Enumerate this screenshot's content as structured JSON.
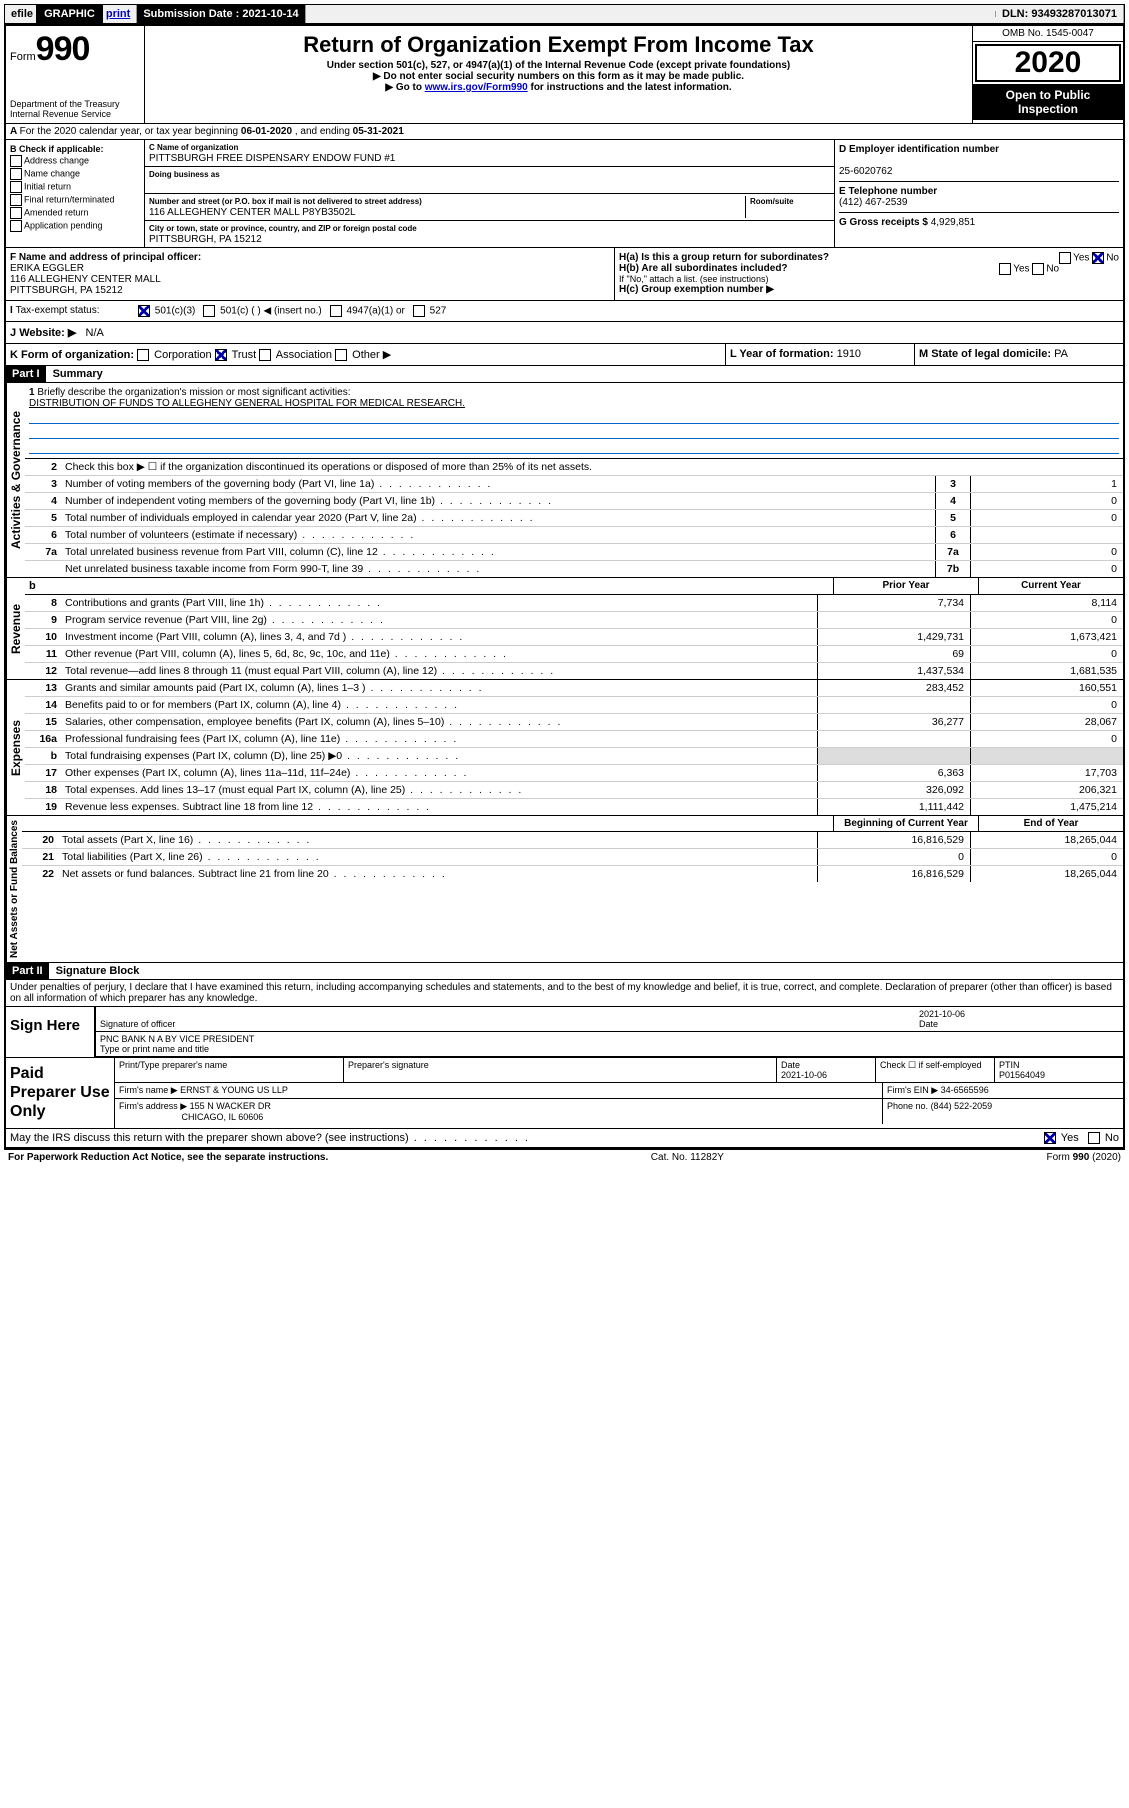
{
  "topbar": {
    "efile": "efile",
    "graphic": "GRAPHIC",
    "print": "print",
    "sub_label": "Submission Date :",
    "sub_date": "2021-10-14",
    "dln_label": "DLN:",
    "dln": "93493287013071"
  },
  "header": {
    "form": "Form",
    "num": "990",
    "dept1": "Department of the Treasury",
    "dept2": "Internal Revenue Service",
    "title": "Return of Organization Exempt From Income Tax",
    "sub1": "Under section 501(c), 527, or 4947(a)(1) of the Internal Revenue Code (except private foundations)",
    "sub2": "▶ Do not enter social security numbers on this form as it may be made public.",
    "sub3_pre": "▶ Go to ",
    "sub3_link": "www.irs.gov/Form990",
    "sub3_post": " for instructions and the latest information.",
    "omb": "OMB No. 1545-0047",
    "year": "2020",
    "inspect": "Open to Public Inspection"
  },
  "A": {
    "text_pre": "For the 2020 calendar year, or tax year beginning ",
    "begin": "06-01-2020",
    "mid": " , and ending ",
    "end": "05-31-2021"
  },
  "B": {
    "title": "B Check if applicable:",
    "items": [
      "Address change",
      "Name change",
      "Initial return",
      "Final return/terminated",
      "Amended return",
      "Application pending"
    ]
  },
  "C": {
    "name_label": "C Name of organization",
    "name": "PITTSBURGH FREE DISPENSARY ENDOW FUND #1",
    "dba_label": "Doing business as",
    "dba": "",
    "addr_label": "Number and street (or P.O. box if mail is not delivered to street address)",
    "room_label": "Room/suite",
    "addr": "116 ALLEGHENY CENTER MALL P8YB3502L",
    "city_label": "City or town, state or province, country, and ZIP or foreign postal code",
    "city": "PITTSBURGH, PA  15212"
  },
  "D": {
    "ein_label": "D Employer identification number",
    "ein": "25-6020762",
    "phone_label": "E Telephone number",
    "phone": "(412) 467-2539",
    "gross_label": "G Gross receipts $",
    "gross": "4,929,851"
  },
  "F": {
    "label": "F  Name and address of principal officer:",
    "name": "ERIKA EGGLER",
    "addr1": "116 ALLEGHENY CENTER MALL",
    "addr2": "PITTSBURGH, PA  15212"
  },
  "H": {
    "a": "H(a)  Is this a group return for subordinates?",
    "a_no_checked": true,
    "b": "H(b)  Are all subordinates included?",
    "b_note": "If \"No,\" attach a list. (see instructions)",
    "c": "H(c)  Group exemption number ▶"
  },
  "I": {
    "label": "Tax-exempt status:",
    "opt1": "501(c)(3)",
    "opt2": "501(c) (   ) ◀ (insert no.)",
    "opt3": "4947(a)(1) or",
    "opt4": "527"
  },
  "J": {
    "label": "Website: ▶",
    "val": "N/A"
  },
  "K": {
    "label": "K Form of organization:",
    "opts": [
      "Corporation",
      "Trust",
      "Association",
      "Other ▶"
    ],
    "trust_checked": true,
    "L_label": "L Year of formation:",
    "L_val": "1910",
    "M_label": "M State of legal domicile:",
    "M_val": "PA"
  },
  "partI": {
    "header": "Part I",
    "title": "Summary",
    "line1_label": "Briefly describe the organization's mission or most significant activities:",
    "line1_text": "DISTRIBUTION OF FUNDS TO ALLEGHENY GENERAL HOSPITAL FOR MEDICAL RESEARCH.",
    "line2": "Check this box ▶ ☐  if the organization discontinued its operations or disposed of more than 25% of its net assets.",
    "vlabel_gov": "Activities & Governance",
    "vlabel_rev": "Revenue",
    "vlabel_exp": "Expenses",
    "vlabel_net": "Net Assets or Fund Balances",
    "gov_lines": [
      {
        "n": "3",
        "d": "Number of voting members of the governing body (Part VI, line 1a)",
        "box": "3",
        "v": "1"
      },
      {
        "n": "4",
        "d": "Number of independent voting members of the governing body (Part VI, line 1b)",
        "box": "4",
        "v": "0"
      },
      {
        "n": "5",
        "d": "Total number of individuals employed in calendar year 2020 (Part V, line 2a)",
        "box": "5",
        "v": "0"
      },
      {
        "n": "6",
        "d": "Total number of volunteers (estimate if necessary)",
        "box": "6",
        "v": ""
      },
      {
        "n": "7a",
        "d": "Total unrelated business revenue from Part VIII, column (C), line 12",
        "box": "7a",
        "v": "0"
      },
      {
        "n": "",
        "d": "Net unrelated business taxable income from Form 990-T, line 39",
        "box": "7b",
        "v": "0"
      }
    ],
    "col_prior": "Prior Year",
    "col_current": "Current Year",
    "col_begin": "Beginning of Current Year",
    "col_end": "End of Year",
    "rev_lines": [
      {
        "n": "8",
        "d": "Contributions and grants (Part VIII, line 1h)",
        "p": "7,734",
        "c": "8,114"
      },
      {
        "n": "9",
        "d": "Program service revenue (Part VIII, line 2g)",
        "p": "",
        "c": "0"
      },
      {
        "n": "10",
        "d": "Investment income (Part VIII, column (A), lines 3, 4, and 7d )",
        "p": "1,429,731",
        "c": "1,673,421"
      },
      {
        "n": "11",
        "d": "Other revenue (Part VIII, column (A), lines 5, 6d, 8c, 9c, 10c, and 11e)",
        "p": "69",
        "c": "0"
      },
      {
        "n": "12",
        "d": "Total revenue—add lines 8 through 11 (must equal Part VIII, column (A), line 12)",
        "p": "1,437,534",
        "c": "1,681,535"
      }
    ],
    "exp_lines": [
      {
        "n": "13",
        "d": "Grants and similar amounts paid (Part IX, column (A), lines 1–3 )",
        "p": "283,452",
        "c": "160,551"
      },
      {
        "n": "14",
        "d": "Benefits paid to or for members (Part IX, column (A), line 4)",
        "p": "",
        "c": "0"
      },
      {
        "n": "15",
        "d": "Salaries, other compensation, employee benefits (Part IX, column (A), lines 5–10)",
        "p": "36,277",
        "c": "28,067"
      },
      {
        "n": "16a",
        "d": "Professional fundraising fees (Part IX, column (A), line 11e)",
        "p": "",
        "c": "0"
      },
      {
        "n": "b",
        "d": "Total fundraising expenses (Part IX, column (D), line 25) ▶0",
        "p": "__SHADE__",
        "c": "__SHADE__"
      },
      {
        "n": "17",
        "d": "Other expenses (Part IX, column (A), lines 11a–11d, 11f–24e)",
        "p": "6,363",
        "c": "17,703"
      },
      {
        "n": "18",
        "d": "Total expenses. Add lines 13–17 (must equal Part IX, column (A), line 25)",
        "p": "326,092",
        "c": "206,321"
      },
      {
        "n": "19",
        "d": "Revenue less expenses. Subtract line 18 from line 12",
        "p": "1,111,442",
        "c": "1,475,214"
      }
    ],
    "net_lines": [
      {
        "n": "20",
        "d": "Total assets (Part X, line 16)",
        "p": "16,816,529",
        "c": "18,265,044"
      },
      {
        "n": "21",
        "d": "Total liabilities (Part X, line 26)",
        "p": "0",
        "c": "0"
      },
      {
        "n": "22",
        "d": "Net assets or fund balances. Subtract line 21 from line 20",
        "p": "16,816,529",
        "c": "18,265,044"
      }
    ]
  },
  "partII": {
    "header": "Part II",
    "title": "Signature Block",
    "perjury": "Under penalties of perjury, I declare that I have examined this return, including accompanying schedules and statements, and to the best of my knowledge and belief, it is true, correct, and complete. Declaration of preparer (other than officer) is based on all information of which preparer has any knowledge."
  },
  "sign": {
    "label": "Sign Here",
    "sig_officer": "Signature of officer",
    "date_label": "Date",
    "date": "2021-10-06",
    "name": "PNC BANK N A BY VICE PRESIDENT",
    "name_label": "Type or print name and title"
  },
  "prep": {
    "label": "Paid Preparer Use Only",
    "h1": "Print/Type preparer's name",
    "h2": "Preparer's signature",
    "h3_label": "Date",
    "h3": "2021-10-06",
    "h4_label": "Check ☐ if self-employed",
    "h5_label": "PTIN",
    "h5": "P01564049",
    "firm_label": "Firm's name    ▶",
    "firm": "ERNST & YOUNG US LLP",
    "ein_label": "Firm's EIN ▶",
    "ein": "34-6565596",
    "addr_label": "Firm's address ▶",
    "addr1": "155 N WACKER DR",
    "addr2": "CHICAGO, IL  60606",
    "phone_label": "Phone no.",
    "phone": "(844) 522-2059"
  },
  "footer": {
    "discuss": "May the IRS discuss this return with the preparer shown above? (see instructions)",
    "yes_checked": true,
    "paperwork": "For Paperwork Reduction Act Notice, see the separate instructions.",
    "cat": "Cat. No. 11282Y",
    "form": "Form 990 (2020)"
  }
}
